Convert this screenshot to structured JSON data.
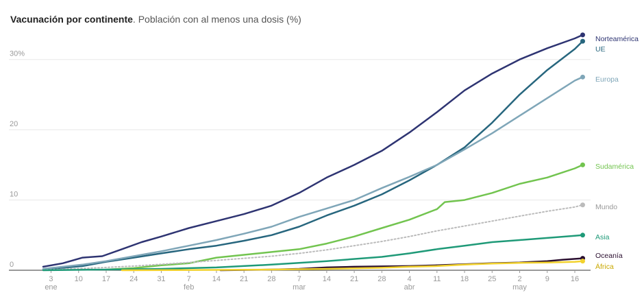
{
  "title_bold": "Vacunación por continente",
  "title_rest": ". Población con al menos una dosis (%)",
  "chart_data": {
    "type": "line",
    "title": "Vacunación por continente. Población con al menos una dosis (%)",
    "ylabel": "Población con al menos una dosis (%)",
    "ylim": [
      0,
      33
    ],
    "yticks": [
      {
        "value": 0,
        "label": "0"
      },
      {
        "value": 10,
        "label": "10"
      },
      {
        "value": 20,
        "label": "20"
      },
      {
        "value": 30,
        "label": "30%"
      }
    ],
    "xlim": [
      0,
      139
    ],
    "xticks": [
      {
        "day": 2,
        "label": "3",
        "month": "ene"
      },
      {
        "day": 9,
        "label": "10",
        "month": ""
      },
      {
        "day": 16,
        "label": "17",
        "month": ""
      },
      {
        "day": 23,
        "label": "24",
        "month": ""
      },
      {
        "day": 30,
        "label": "31",
        "month": ""
      },
      {
        "day": 37,
        "label": "7",
        "month": "feb"
      },
      {
        "day": 44,
        "label": "14",
        "month": ""
      },
      {
        "day": 51,
        "label": "21",
        "month": ""
      },
      {
        "day": 58,
        "label": "28",
        "month": ""
      },
      {
        "day": 65,
        "label": "7",
        "month": "mar"
      },
      {
        "day": 72,
        "label": "14",
        "month": ""
      },
      {
        "day": 79,
        "label": "21",
        "month": ""
      },
      {
        "day": 86,
        "label": "28",
        "month": ""
      },
      {
        "day": 93,
        "label": "4",
        "month": "abr"
      },
      {
        "day": 100,
        "label": "11",
        "month": ""
      },
      {
        "day": 107,
        "label": "18",
        "month": ""
      },
      {
        "day": 114,
        "label": "25",
        "month": ""
      },
      {
        "day": 121,
        "label": "2",
        "month": "may"
      },
      {
        "day": 128,
        "label": "9",
        "month": ""
      },
      {
        "day": 135,
        "label": "16",
        "month": ""
      }
    ],
    "series": [
      {
        "name": "Norteamérica",
        "color": "#2e3472",
        "dashed": false,
        "points": [
          [
            0,
            0.5
          ],
          [
            5,
            1.0
          ],
          [
            10,
            1.8
          ],
          [
            15,
            2.0
          ],
          [
            20,
            3.0
          ],
          [
            25,
            4.0
          ],
          [
            30,
            4.8
          ],
          [
            37,
            6.0
          ],
          [
            44,
            7.0
          ],
          [
            51,
            8.0
          ],
          [
            58,
            9.2
          ],
          [
            65,
            11.0
          ],
          [
            72,
            13.2
          ],
          [
            79,
            15.0
          ],
          [
            86,
            17.0
          ],
          [
            93,
            19.6
          ],
          [
            100,
            22.5
          ],
          [
            107,
            25.6
          ],
          [
            114,
            28.0
          ],
          [
            121,
            30.0
          ],
          [
            128,
            31.6
          ],
          [
            135,
            33.0
          ],
          [
            137,
            33.5
          ]
        ]
      },
      {
        "name": "UE",
        "color": "#27667e",
        "dashed": false,
        "points": [
          [
            0,
            0.1
          ],
          [
            10,
            0.6
          ],
          [
            16,
            1.2
          ],
          [
            23,
            1.8
          ],
          [
            30,
            2.4
          ],
          [
            37,
            3.0
          ],
          [
            44,
            3.5
          ],
          [
            51,
            4.2
          ],
          [
            58,
            5.0
          ],
          [
            65,
            6.2
          ],
          [
            72,
            7.8
          ],
          [
            79,
            9.2
          ],
          [
            86,
            10.8
          ],
          [
            93,
            12.8
          ],
          [
            100,
            15.0
          ],
          [
            107,
            17.5
          ],
          [
            114,
            21.0
          ],
          [
            121,
            25.0
          ],
          [
            128,
            28.5
          ],
          [
            135,
            31.5
          ],
          [
            137,
            32.6
          ]
        ]
      },
      {
        "name": "Europa",
        "color": "#7fa6b8",
        "dashed": false,
        "points": [
          [
            0,
            0.2
          ],
          [
            10,
            0.8
          ],
          [
            16,
            1.3
          ],
          [
            23,
            2.0
          ],
          [
            30,
            2.7
          ],
          [
            37,
            3.5
          ],
          [
            44,
            4.3
          ],
          [
            51,
            5.2
          ],
          [
            58,
            6.2
          ],
          [
            65,
            7.6
          ],
          [
            72,
            8.8
          ],
          [
            79,
            10.0
          ],
          [
            86,
            11.7
          ],
          [
            93,
            13.3
          ],
          [
            100,
            15.0
          ],
          [
            107,
            17.2
          ],
          [
            114,
            19.5
          ],
          [
            121,
            22.0
          ],
          [
            128,
            24.5
          ],
          [
            135,
            27.0
          ],
          [
            137,
            27.5
          ]
        ]
      },
      {
        "name": "Sudamérica",
        "color": "#72c44f",
        "dashed": false,
        "points": [
          [
            16,
            0.1
          ],
          [
            23,
            0.3
          ],
          [
            30,
            0.7
          ],
          [
            37,
            1.0
          ],
          [
            44,
            1.8
          ],
          [
            51,
            2.2
          ],
          [
            58,
            2.6
          ],
          [
            65,
            3.0
          ],
          [
            72,
            3.8
          ],
          [
            79,
            4.8
          ],
          [
            86,
            6.0
          ],
          [
            93,
            7.2
          ],
          [
            100,
            8.7
          ],
          [
            102,
            9.7
          ],
          [
            107,
            10.0
          ],
          [
            114,
            11.0
          ],
          [
            121,
            12.3
          ],
          [
            128,
            13.2
          ],
          [
            135,
            14.5
          ],
          [
            137,
            15.0
          ]
        ]
      },
      {
        "name": "Mundo",
        "color": "#bbbbbb",
        "dashed": true,
        "points": [
          [
            0,
            0.05
          ],
          [
            10,
            0.25
          ],
          [
            16,
            0.4
          ],
          [
            23,
            0.6
          ],
          [
            30,
            0.85
          ],
          [
            37,
            1.1
          ],
          [
            44,
            1.4
          ],
          [
            51,
            1.7
          ],
          [
            58,
            2.0
          ],
          [
            65,
            2.4
          ],
          [
            72,
            2.9
          ],
          [
            79,
            3.5
          ],
          [
            86,
            4.1
          ],
          [
            93,
            4.8
          ],
          [
            100,
            5.6
          ],
          [
            107,
            6.3
          ],
          [
            114,
            7.0
          ],
          [
            121,
            7.7
          ],
          [
            128,
            8.4
          ],
          [
            135,
            9.0
          ],
          [
            137,
            9.3
          ]
        ]
      },
      {
        "name": "Asia",
        "color": "#1f9a78",
        "dashed": false,
        "points": [
          [
            0,
            0.0
          ],
          [
            16,
            0.1
          ],
          [
            30,
            0.2
          ],
          [
            44,
            0.4
          ],
          [
            58,
            0.8
          ],
          [
            72,
            1.3
          ],
          [
            86,
            1.9
          ],
          [
            93,
            2.4
          ],
          [
            100,
            3.0
          ],
          [
            107,
            3.5
          ],
          [
            114,
            4.0
          ],
          [
            121,
            4.3
          ],
          [
            128,
            4.6
          ],
          [
            135,
            4.9
          ],
          [
            137,
            5.0
          ]
        ]
      },
      {
        "name": "Oceanía",
        "color": "#2a0e2f",
        "dashed": false,
        "points": [
          [
            45,
            0.0
          ],
          [
            58,
            0.1
          ],
          [
            65,
            0.2
          ],
          [
            72,
            0.4
          ],
          [
            79,
            0.5
          ],
          [
            86,
            0.55
          ],
          [
            93,
            0.6
          ],
          [
            100,
            0.7
          ],
          [
            107,
            0.85
          ],
          [
            114,
            1.0
          ],
          [
            121,
            1.1
          ],
          [
            128,
            1.3
          ],
          [
            132,
            1.5
          ],
          [
            137,
            1.7
          ]
        ]
      },
      {
        "name": "África",
        "color": "#f2d22e",
        "dashed": false,
        "points": [
          [
            20,
            0.0
          ],
          [
            44,
            0.05
          ],
          [
            58,
            0.1
          ],
          [
            72,
            0.2
          ],
          [
            86,
            0.35
          ],
          [
            93,
            0.5
          ],
          [
            100,
            0.6
          ],
          [
            107,
            0.8
          ],
          [
            114,
            0.95
          ],
          [
            121,
            1.05
          ],
          [
            128,
            1.1
          ],
          [
            135,
            1.2
          ],
          [
            137,
            1.3
          ]
        ]
      }
    ]
  }
}
